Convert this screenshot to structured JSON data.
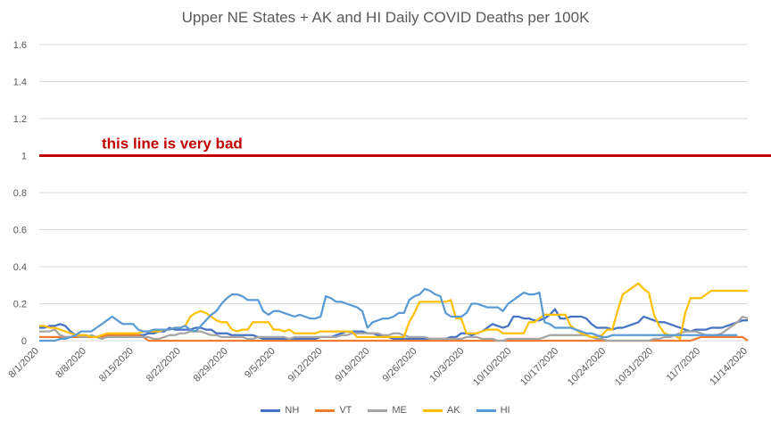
{
  "chart_data": {
    "type": "line",
    "title": "Upper NE States + AK and HI Daily COVID Deaths per 100K",
    "xlabel": "",
    "ylabel": "",
    "ylim": [
      0,
      1.6
    ],
    "yticks": [
      "0",
      "0.2",
      "0.4",
      "0.6",
      "0.8",
      "1",
      "1.2",
      "1.4",
      "1.6"
    ],
    "x_ticks": [
      "8/1/2020",
      "8/8/2020",
      "8/15/2020",
      "8/22/2020",
      "8/29/2020",
      "9/5/2020",
      "9/12/2020",
      "9/19/2020",
      "9/26/2020",
      "10/3/2020",
      "10/10/2020",
      "10/17/2020",
      "10/24/2020",
      "10/31/2020",
      "11/7/2020",
      "11/14/2020"
    ],
    "grid": true,
    "legend_position": "bottom",
    "reference_line": {
      "y": 1,
      "label": "this line is very bad",
      "color": "#c00000"
    },
    "series": [
      {
        "name": "NH",
        "color": "#4472c4",
        "values": [
          0.07,
          0.07,
          0.08,
          0.08,
          0.09,
          0.08,
          0.05,
          0.03,
          0.03,
          0.03,
          0.02,
          0.02,
          0.03,
          0.03,
          0.02,
          0.02,
          0.03,
          0.03,
          0.03,
          0.03,
          0.03,
          0.04,
          0.04,
          0.05,
          0.05,
          0.07,
          0.06,
          0.06,
          0.06,
          0.06,
          0.07,
          0.07,
          0.06,
          0.06,
          0.04,
          0.04,
          0.04,
          0.03,
          0.03,
          0.03,
          0.03,
          0.03,
          0.02,
          0.01,
          0.01,
          0.01,
          0.01,
          0.01,
          0.01,
          0.01,
          0.01,
          0.01,
          0.01,
          0.01,
          0.02,
          0.02,
          0.02,
          0.03,
          0.04,
          0.05,
          0.05,
          0.05,
          0.05,
          0.04,
          0.04,
          0.03,
          0.02,
          0.02,
          0.01,
          0.01,
          0.01,
          0.01,
          0.01,
          0.01,
          0.01,
          0.01,
          0.01,
          0.01,
          0.01,
          0.02,
          0.02,
          0.04,
          0.04,
          0.03,
          0.04,
          0.05,
          0.07,
          0.09,
          0.08,
          0.07,
          0.08,
          0.13,
          0.13,
          0.12,
          0.12,
          0.11,
          0.11,
          0.12,
          0.14,
          0.17,
          0.12,
          0.12,
          0.13,
          0.13,
          0.13,
          0.12,
          0.09,
          0.07,
          0.07,
          0.07,
          0.06,
          0.07,
          0.07,
          0.08,
          0.09,
          0.1,
          0.13,
          0.12,
          0.11,
          0.1,
          0.1,
          0.09,
          0.08,
          0.07,
          0.06,
          0.05,
          0.06,
          0.06,
          0.06,
          0.07,
          0.07,
          0.07,
          0.08,
          0.09,
          0.1,
          0.11,
          0.11
        ]
      },
      {
        "name": "VT",
        "color": "#ed7d31",
        "values": [
          0.02,
          0.02,
          0.02,
          0.02,
          0.02,
          0.02,
          0.02,
          0.02,
          0.02,
          0.02,
          0.02,
          0.02,
          0.02,
          0.03,
          0.03,
          0.03,
          0.03,
          0.03,
          0.03,
          0.03,
          0.02,
          0.0,
          0.0,
          0.0,
          0.0,
          0.0,
          0.0,
          0.0,
          0.0,
          0.0,
          0.0,
          0.0,
          0.0,
          0.0,
          0.0,
          0.0,
          0.0,
          0.0,
          0.0,
          0.0,
          0.0,
          0.0,
          0.0,
          0.0,
          0.0,
          0.0,
          0.0,
          0.0,
          0.0,
          0.0,
          0.0,
          0.0,
          0.0,
          0.0,
          0.0,
          0.0,
          0.0,
          0.0,
          0.0,
          0.0,
          0.0,
          0.0,
          0.0,
          0.0,
          0.0,
          0.0,
          0.0,
          0.0,
          0.0,
          0.0,
          0.0,
          0.0,
          0.0,
          0.0,
          0.0,
          0.0,
          0.0,
          0.0,
          0.0,
          0.0,
          0.0,
          0.0,
          0.0,
          0.0,
          0.0,
          0.0,
          0.0,
          0.0,
          0.0,
          0.0,
          0.0,
          0.0,
          0.0,
          0.0,
          0.0,
          0.0,
          0.0,
          0.0,
          0.0,
          0.0,
          0.0,
          0.0,
          0.0,
          0.0,
          0.0,
          0.0,
          0.0,
          0.0,
          0.0,
          0.0,
          0.0,
          0.0,
          0.0,
          0.0,
          0.0,
          0.0,
          0.0,
          0.0,
          0.0,
          0.0,
          0.0,
          0.0,
          0.0,
          0.0,
          0.0,
          0.0,
          0.01,
          0.02,
          0.02,
          0.02,
          0.02,
          0.02,
          0.02,
          0.02,
          0.02,
          0.02,
          0.0
        ]
      },
      {
        "name": "ME",
        "color": "#a5a5a5",
        "values": [
          0.05,
          0.05,
          0.05,
          0.06,
          0.03,
          0.02,
          0.02,
          0.03,
          0.02,
          0.02,
          0.03,
          0.02,
          0.01,
          0.02,
          0.02,
          0.02,
          0.02,
          0.02,
          0.02,
          0.02,
          0.02,
          0.02,
          0.01,
          0.01,
          0.02,
          0.03,
          0.03,
          0.04,
          0.04,
          0.05,
          0.05,
          0.05,
          0.04,
          0.03,
          0.03,
          0.02,
          0.02,
          0.02,
          0.02,
          0.02,
          0.01,
          0.01,
          0.02,
          0.02,
          0.02,
          0.02,
          0.02,
          0.02,
          0.01,
          0.02,
          0.02,
          0.02,
          0.02,
          0.02,
          0.02,
          0.02,
          0.02,
          0.02,
          0.03,
          0.03,
          0.04,
          0.04,
          0.04,
          0.04,
          0.04,
          0.04,
          0.03,
          0.03,
          0.04,
          0.04,
          0.03,
          0.02,
          0.02,
          0.02,
          0.02,
          0.01,
          0.01,
          0.01,
          0.01,
          0.01,
          0.01,
          0.01,
          0.02,
          0.02,
          0.02,
          0.01,
          0.01,
          0.01,
          0.0,
          0.0,
          0.01,
          0.01,
          0.01,
          0.01,
          0.01,
          0.01,
          0.01,
          0.02,
          0.03,
          0.03,
          0.03,
          0.03,
          0.03,
          0.03,
          0.03,
          0.03,
          0.02,
          0.01,
          0.01,
          0.0,
          0.0,
          0.0,
          0.0,
          0.0,
          0.0,
          0.0,
          0.0,
          0.0,
          0.01,
          0.01,
          0.02,
          0.02,
          0.03,
          0.04,
          0.05,
          0.05,
          0.05,
          0.04,
          0.03,
          0.03,
          0.03,
          0.04,
          0.06,
          0.08,
          0.1,
          0.13,
          0.12
        ]
      },
      {
        "name": "AK",
        "color": "#ffc000",
        "values": [
          0.08,
          0.08,
          0.07,
          0.07,
          0.06,
          0.05,
          0.04,
          0.03,
          0.03,
          0.03,
          0.02,
          0.02,
          0.03,
          0.04,
          0.04,
          0.04,
          0.04,
          0.04,
          0.04,
          0.04,
          0.05,
          0.05,
          0.05,
          0.05,
          0.06,
          0.06,
          0.07,
          0.07,
          0.08,
          0.13,
          0.15,
          0.16,
          0.15,
          0.13,
          0.11,
          0.1,
          0.1,
          0.06,
          0.05,
          0.06,
          0.06,
          0.1,
          0.1,
          0.1,
          0.1,
          0.06,
          0.06,
          0.05,
          0.06,
          0.04,
          0.04,
          0.04,
          0.04,
          0.04,
          0.05,
          0.05,
          0.05,
          0.05,
          0.05,
          0.05,
          0.05,
          0.02,
          0.02,
          0.02,
          0.02,
          0.02,
          0.02,
          0.02,
          0.02,
          0.02,
          0.02,
          0.1,
          0.15,
          0.21,
          0.21,
          0.21,
          0.21,
          0.21,
          0.21,
          0.22,
          0.12,
          0.12,
          0.04,
          0.04,
          0.04,
          0.05,
          0.06,
          0.06,
          0.06,
          0.04,
          0.04,
          0.04,
          0.04,
          0.04,
          0.1,
          0.1,
          0.12,
          0.14,
          0.14,
          0.14,
          0.14,
          0.14,
          0.08,
          0.06,
          0.04,
          0.03,
          0.02,
          0.02,
          0.03,
          0.06,
          0.06,
          0.16,
          0.25,
          0.27,
          0.29,
          0.31,
          0.28,
          0.26,
          0.14,
          0.08,
          0.04,
          0.03,
          0.03,
          0.01,
          0.15,
          0.23,
          0.23,
          0.23,
          0.25,
          0.27,
          0.27,
          0.27,
          0.27,
          0.27,
          0.27,
          0.27,
          0.27
        ]
      },
      {
        "name": "HI",
        "color": "#5b9bd5",
        "values": [
          0.0,
          0.0,
          0.0,
          0.0,
          0.01,
          0.01,
          0.02,
          0.03,
          0.05,
          0.05,
          0.05,
          0.07,
          0.09,
          0.11,
          0.13,
          0.11,
          0.09,
          0.09,
          0.09,
          0.06,
          0.05,
          0.05,
          0.06,
          0.06,
          0.06,
          0.06,
          0.07,
          0.07,
          0.08,
          0.06,
          0.05,
          0.08,
          0.11,
          0.14,
          0.16,
          0.2,
          0.23,
          0.25,
          0.25,
          0.24,
          0.22,
          0.22,
          0.22,
          0.16,
          0.14,
          0.16,
          0.16,
          0.15,
          0.14,
          0.13,
          0.14,
          0.13,
          0.12,
          0.12,
          0.13,
          0.24,
          0.23,
          0.21,
          0.21,
          0.2,
          0.19,
          0.18,
          0.16,
          0.07,
          0.1,
          0.11,
          0.12,
          0.12,
          0.13,
          0.15,
          0.15,
          0.22,
          0.24,
          0.25,
          0.28,
          0.27,
          0.25,
          0.24,
          0.15,
          0.13,
          0.13,
          0.13,
          0.15,
          0.2,
          0.2,
          0.19,
          0.18,
          0.18,
          0.18,
          0.16,
          0.2,
          0.22,
          0.24,
          0.26,
          0.25,
          0.25,
          0.26,
          0.1,
          0.09,
          0.07,
          0.07,
          0.07,
          0.07,
          0.06,
          0.05,
          0.04,
          0.04,
          0.03,
          0.02,
          0.02,
          0.03,
          0.03,
          0.03,
          0.03,
          0.03,
          0.03,
          0.03,
          0.03,
          0.03,
          0.03,
          0.03,
          0.03,
          0.03,
          0.03,
          0.03,
          0.03,
          0.03,
          0.03,
          0.03,
          0.03,
          0.03,
          0.03,
          0.03,
          0.03,
          0.03
        ]
      }
    ]
  }
}
